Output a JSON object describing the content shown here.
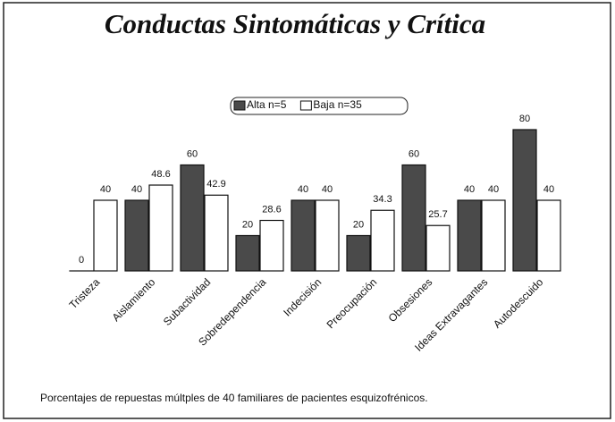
{
  "chart_data": {
    "type": "bar",
    "title": "Conductas Sintomáticas y Crítica",
    "categories": [
      "Tristeza",
      "Aislamiento",
      "Subactividad",
      "Sobredependencia",
      "Indecisión",
      "Preocupación",
      "Obsesiones",
      "Ideas Extravagantes",
      "Autodescuido"
    ],
    "series": [
      {
        "name": "Alta n=5",
        "color": "#4a4a4a",
        "values": [
          0,
          40,
          60,
          20,
          40,
          20,
          60,
          40,
          80
        ]
      },
      {
        "name": "Baja n=35",
        "color": "#ffffff",
        "values": [
          40,
          48.6,
          42.9,
          28.6,
          40,
          34.3,
          25.7,
          40,
          40
        ]
      }
    ],
    "legend": "top",
    "note": "Porcentajes de repuestas múltples de 40 familiares de pacientes esquizofrénicos."
  }
}
